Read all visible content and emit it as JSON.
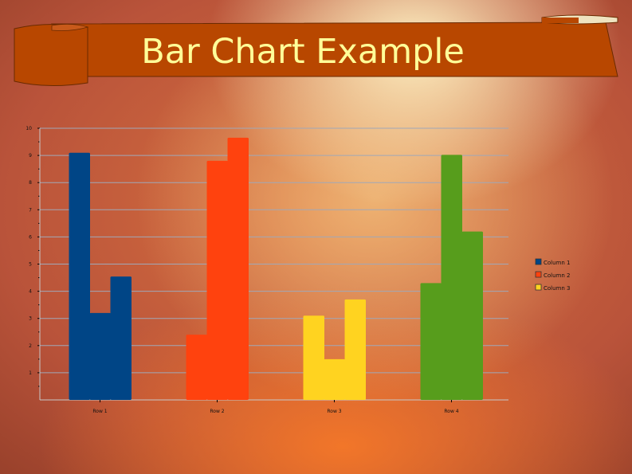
{
  "chart_data": {
    "type": "bar",
    "title": "Bar Chart Example",
    "categories": [
      "Row 1",
      "Row 2",
      "Row 3",
      "Row 4"
    ],
    "series": [
      {
        "name": "Column 1",
        "values": [
          9.1,
          2.4,
          3.1,
          4.3
        ]
      },
      {
        "name": "Column 2",
        "values": [
          3.2,
          8.8,
          1.5,
          9.02
        ]
      },
      {
        "name": "Column 3",
        "values": [
          4.54,
          9.65,
          3.7,
          6.2
        ]
      }
    ],
    "ylim": [
      0,
      10
    ],
    "yticks": [
      "1",
      "2",
      "3",
      "4",
      "5",
      "6",
      "7",
      "8",
      "9",
      "10"
    ],
    "grid": true,
    "legend_position": "right",
    "legend_colors": [
      "#004586",
      "#ff420e",
      "#ffd320"
    ],
    "category_colors": [
      "#004586",
      "#ff420e",
      "#ffd320",
      "#579d1c"
    ],
    "banner_color": "#b84700",
    "title_color": "#ffff99"
  }
}
